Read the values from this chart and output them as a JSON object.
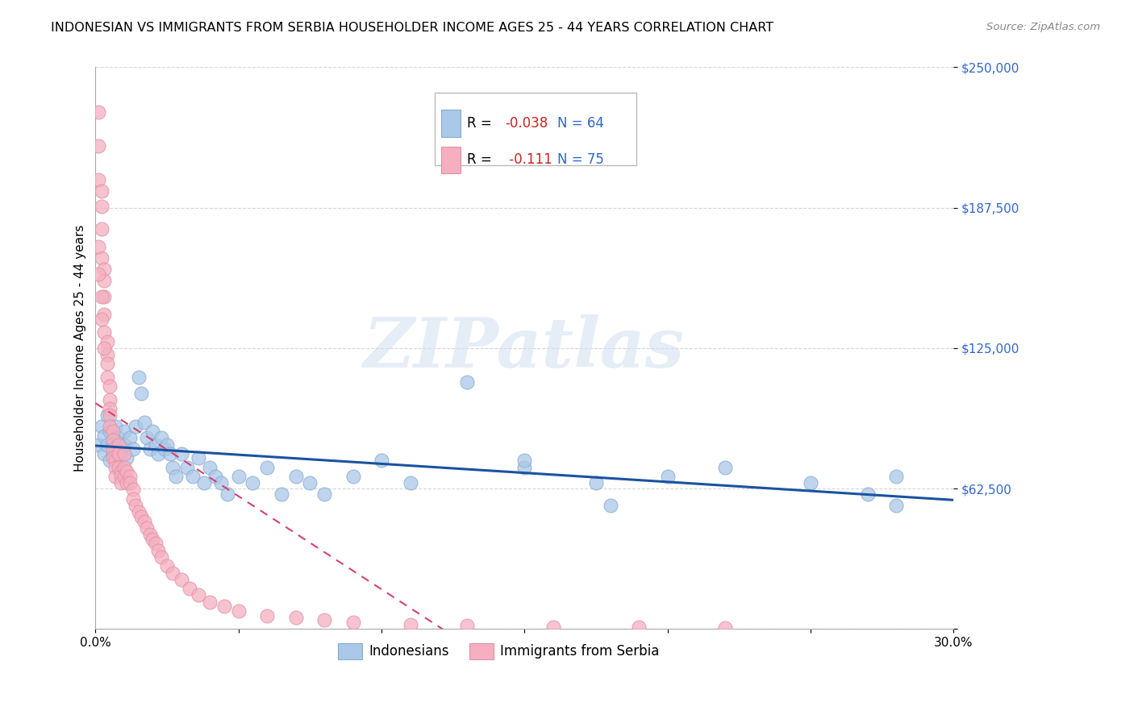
{
  "title": "INDONESIAN VS IMMIGRANTS FROM SERBIA HOUSEHOLDER INCOME AGES 25 - 44 YEARS CORRELATION CHART",
  "source": "Source: ZipAtlas.com",
  "ylabel": "Householder Income Ages 25 - 44 years",
  "xlim": [
    0.0,
    0.3
  ],
  "ylim": [
    0,
    250000
  ],
  "yticks": [
    0,
    62500,
    125000,
    187500,
    250000
  ],
  "ytick_labels": [
    "",
    "$62,500",
    "$125,000",
    "$187,500",
    "$250,000"
  ],
  "xtick_positions": [
    0.0,
    0.05,
    0.1,
    0.15,
    0.2,
    0.25,
    0.3
  ],
  "xtick_labels": [
    "0.0%",
    "",
    "",
    "",
    "",
    "",
    "30.0%"
  ],
  "series1_color": "#aac8e8",
  "series1_edge": "#88aad0",
  "series2_color": "#f5afc0",
  "series2_edge": "#e090a8",
  "trend1_color": "#1a52a0",
  "trend2_color": "#d84070",
  "watermark": "ZIPatlas",
  "watermark_color": "#d0dff0",
  "legend_r1": "-0.038",
  "legend_n1": "64",
  "legend_r2": "-0.111",
  "legend_n2": "75",
  "r_color": "#cc2222",
  "n_color": "#3366cc",
  "grid_color": "#cccccc",
  "title_fontsize": 11.5,
  "source_fontsize": 9.5,
  "tick_fontsize": 11,
  "legend_fontsize": 12,
  "indonesian_x": [
    0.001,
    0.002,
    0.003,
    0.003,
    0.004,
    0.004,
    0.005,
    0.005,
    0.006,
    0.006,
    0.007,
    0.007,
    0.008,
    0.009,
    0.01,
    0.01,
    0.011,
    0.012,
    0.013,
    0.014,
    0.015,
    0.016,
    0.017,
    0.018,
    0.019,
    0.02,
    0.021,
    0.022,
    0.023,
    0.024,
    0.025,
    0.026,
    0.027,
    0.028,
    0.03,
    0.032,
    0.034,
    0.036,
    0.038,
    0.04,
    0.042,
    0.044,
    0.046,
    0.05,
    0.055,
    0.06,
    0.065,
    0.07,
    0.075,
    0.08,
    0.09,
    0.1,
    0.11,
    0.13,
    0.15,
    0.175,
    0.2,
    0.22,
    0.25,
    0.27,
    0.15,
    0.18,
    0.28,
    0.28
  ],
  "indonesian_y": [
    82000,
    90000,
    78000,
    86000,
    82000,
    95000,
    88000,
    75000,
    82000,
    78000,
    90000,
    80000,
    85000,
    78000,
    82000,
    88000,
    76000,
    85000,
    80000,
    90000,
    112000,
    105000,
    92000,
    85000,
    80000,
    88000,
    82000,
    78000,
    85000,
    80000,
    82000,
    78000,
    72000,
    68000,
    78000,
    72000,
    68000,
    76000,
    65000,
    72000,
    68000,
    65000,
    60000,
    68000,
    65000,
    72000,
    60000,
    68000,
    65000,
    60000,
    68000,
    75000,
    65000,
    110000,
    72000,
    65000,
    68000,
    72000,
    65000,
    60000,
    75000,
    55000,
    68000,
    55000
  ],
  "serbia_x": [
    0.001,
    0.001,
    0.001,
    0.002,
    0.002,
    0.002,
    0.002,
    0.003,
    0.003,
    0.003,
    0.003,
    0.003,
    0.004,
    0.004,
    0.004,
    0.004,
    0.005,
    0.005,
    0.005,
    0.005,
    0.005,
    0.006,
    0.006,
    0.006,
    0.006,
    0.007,
    0.007,
    0.007,
    0.008,
    0.008,
    0.008,
    0.009,
    0.009,
    0.009,
    0.01,
    0.01,
    0.01,
    0.011,
    0.011,
    0.012,
    0.012,
    0.013,
    0.013,
    0.014,
    0.015,
    0.016,
    0.017,
    0.018,
    0.019,
    0.02,
    0.021,
    0.022,
    0.023,
    0.025,
    0.027,
    0.03,
    0.033,
    0.036,
    0.04,
    0.045,
    0.05,
    0.06,
    0.07,
    0.08,
    0.09,
    0.11,
    0.13,
    0.16,
    0.19,
    0.22,
    0.001,
    0.001,
    0.002,
    0.002,
    0.003
  ],
  "serbia_y": [
    230000,
    215000,
    200000,
    195000,
    188000,
    178000,
    165000,
    160000,
    155000,
    148000,
    140000,
    132000,
    128000,
    122000,
    118000,
    112000,
    108000,
    102000,
    98000,
    95000,
    90000,
    88000,
    84000,
    80000,
    76000,
    75000,
    72000,
    68000,
    82000,
    78000,
    72000,
    70000,
    68000,
    65000,
    78000,
    72000,
    68000,
    70000,
    65000,
    68000,
    65000,
    62000,
    58000,
    55000,
    52000,
    50000,
    48000,
    45000,
    42000,
    40000,
    38000,
    35000,
    32000,
    28000,
    25000,
    22000,
    18000,
    15000,
    12000,
    10000,
    8000,
    6000,
    5000,
    4000,
    3000,
    2000,
    1500,
    1000,
    800,
    600,
    170000,
    158000,
    148000,
    138000,
    125000
  ]
}
